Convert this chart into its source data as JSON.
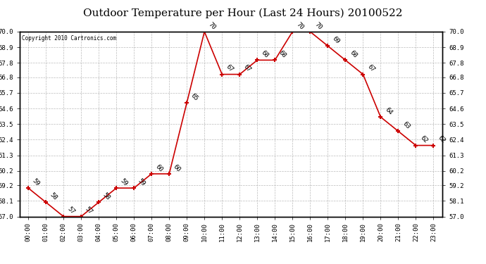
{
  "title": "Outdoor Temperature per Hour (Last 24 Hours) 20100522",
  "copyright": "Copyright 2010 Cartronics.com",
  "hours": [
    "00:00",
    "01:00",
    "02:00",
    "03:00",
    "04:00",
    "05:00",
    "06:00",
    "07:00",
    "08:00",
    "09:00",
    "10:00",
    "11:00",
    "12:00",
    "13:00",
    "14:00",
    "15:00",
    "16:00",
    "17:00",
    "18:00",
    "19:00",
    "20:00",
    "21:00",
    "22:00",
    "23:00"
  ],
  "temps": [
    59,
    58,
    57,
    57,
    58,
    59,
    59,
    60,
    60,
    65,
    70,
    67,
    67,
    68,
    68,
    70,
    70,
    69,
    68,
    67,
    64,
    63,
    62,
    62
  ],
  "ylim_min": 57.0,
  "ylim_max": 70.0,
  "line_color": "#cc0000",
  "marker_color": "#cc0000",
  "bg_color": "#ffffff",
  "grid_color": "#aaaaaa",
  "title_fontsize": 11,
  "copyright_fontsize": 5.5,
  "label_fontsize": 6.5,
  "annotation_fontsize": 6.5,
  "yticks": [
    57.0,
    58.1,
    59.2,
    60.2,
    61.3,
    62.4,
    63.5,
    64.6,
    65.7,
    66.8,
    67.8,
    68.9,
    70.0
  ]
}
